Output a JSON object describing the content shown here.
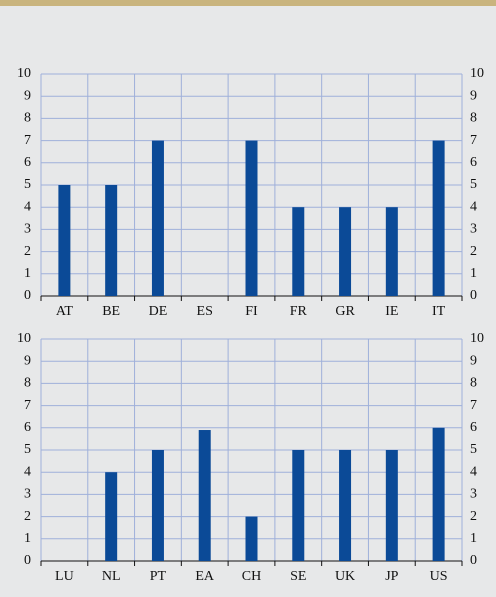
{
  "chart_data": [
    {
      "type": "bar",
      "categories": [
        "AT",
        "BE",
        "DE",
        "ES",
        "FI",
        "FR",
        "GR",
        "IE",
        "IT"
      ],
      "values": [
        5,
        5,
        7,
        0,
        7,
        4,
        4,
        4,
        7
      ],
      "color": "#0b4a97",
      "ylim": [
        0,
        10
      ],
      "yticks": [
        0,
        1,
        2,
        3,
        4,
        5,
        6,
        7,
        8,
        9,
        10
      ],
      "y2lim": [
        0,
        10
      ],
      "y2ticks": [
        0,
        1,
        2,
        3,
        4,
        5,
        6,
        7,
        8,
        9,
        10
      ],
      "grid": true
    },
    {
      "type": "bar",
      "categories": [
        "LU",
        "NL",
        "PT",
        "EA",
        "CH",
        "SE",
        "UK",
        "JP",
        "US"
      ],
      "values": [
        0,
        4,
        5,
        5.9,
        2,
        5,
        5,
        5,
        6
      ],
      "color": "#0b4a97",
      "ylim": [
        0,
        10
      ],
      "yticks": [
        0,
        1,
        2,
        3,
        4,
        5,
        6,
        7,
        8,
        9,
        10
      ],
      "y2lim": [
        0,
        10
      ],
      "y2ticks": [
        0,
        1,
        2,
        3,
        4,
        5,
        6,
        7,
        8,
        9,
        10
      ],
      "grid": true
    }
  ]
}
